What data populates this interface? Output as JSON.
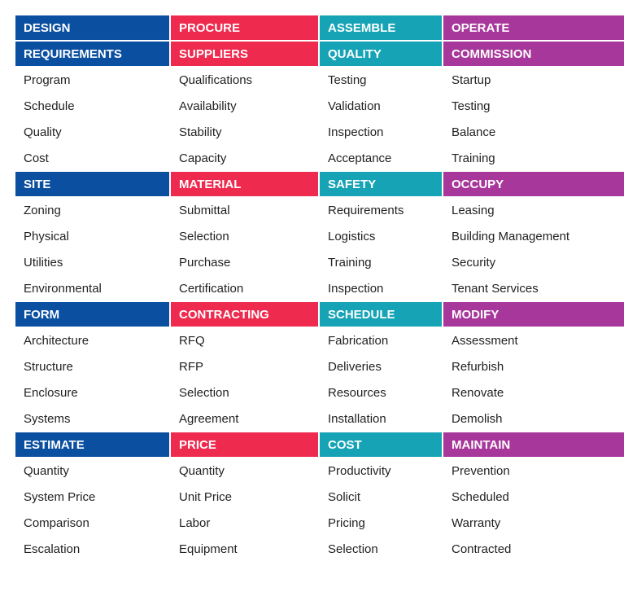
{
  "colors": {
    "design": "#0b4fa0",
    "procure": "#ee2a4e",
    "assemble": "#15a3b5",
    "operate": "#a7379a"
  },
  "columns": [
    {
      "title": "DESIGN",
      "sections": [
        {
          "title": "REQUIREMENTS",
          "items": [
            "Program",
            "Schedule",
            "Quality",
            "Cost"
          ]
        },
        {
          "title": "SITE",
          "items": [
            "Zoning",
            "Physical",
            "Utilities",
            "Environmental"
          ]
        },
        {
          "title": "FORM",
          "items": [
            "Architecture",
            "Structure",
            "Enclosure",
            "Systems"
          ]
        },
        {
          "title": "ESTIMATE",
          "items": [
            "Quantity",
            "System Price",
            "Comparison",
            "Escalation"
          ]
        }
      ]
    },
    {
      "title": "PROCURE",
      "sections": [
        {
          "title": "SUPPLIERS",
          "items": [
            "Qualifications",
            "Availability",
            "Stability",
            "Capacity"
          ]
        },
        {
          "title": "MATERIAL",
          "items": [
            "Submittal",
            "Selection",
            "Purchase",
            "Certification"
          ]
        },
        {
          "title": "CONTRACTING",
          "items": [
            "RFQ",
            "RFP",
            "Selection",
            "Agreement"
          ]
        },
        {
          "title": "PRICE",
          "items": [
            "Quantity",
            "Unit Price",
            "Labor",
            "Equipment"
          ]
        }
      ]
    },
    {
      "title": "ASSEMBLE",
      "sections": [
        {
          "title": "QUALITY",
          "items": [
            "Testing",
            "Validation",
            "Inspection",
            "Acceptance"
          ]
        },
        {
          "title": "SAFETY",
          "items": [
            "Requirements",
            "Logistics",
            "Training",
            "Inspection"
          ]
        },
        {
          "title": "SCHEDULE",
          "items": [
            "Fabrication",
            "Deliveries",
            "Resources",
            "Installation"
          ]
        },
        {
          "title": "COST",
          "items": [
            "Productivity",
            "Solicit",
            "Pricing",
            "Selection"
          ]
        }
      ]
    },
    {
      "title": "OPERATE",
      "sections": [
        {
          "title": "COMMISSION",
          "items": [
            "Startup",
            "Testing",
            "Balance",
            "Training"
          ]
        },
        {
          "title": "OCCUPY",
          "items": [
            "Leasing",
            "Building Management",
            "Security",
            "Tenant Services"
          ]
        },
        {
          "title": "MODIFY",
          "items": [
            "Assessment",
            "Refurbish",
            "Renovate",
            "Demolish"
          ]
        },
        {
          "title": "MAINTAIN",
          "items": [
            "Prevention",
            "Scheduled",
            "Warranty",
            "Contracted"
          ]
        }
      ]
    }
  ]
}
